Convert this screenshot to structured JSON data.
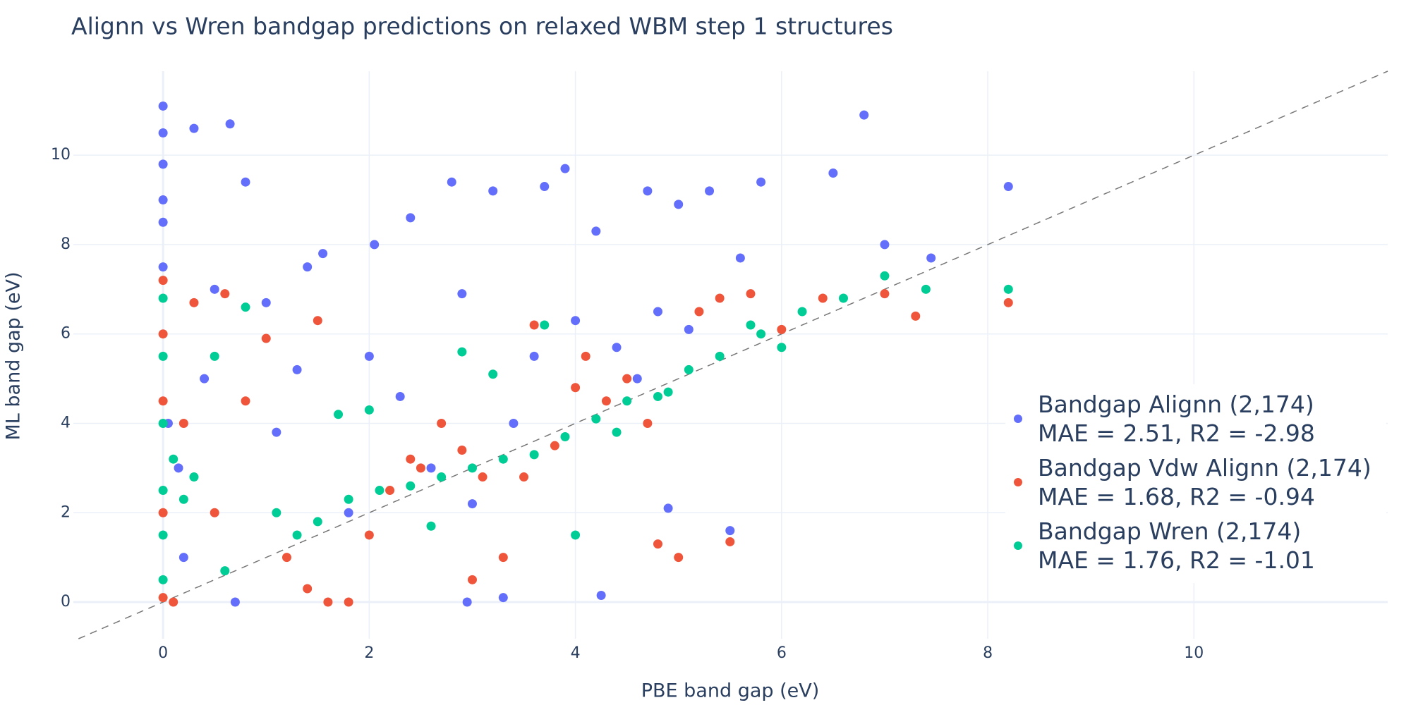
{
  "chart_data": {
    "type": "scatter",
    "title": "Alignn vs Wren bandgap predictions on relaxed WBM step 1 structures",
    "x_label": "PBE band gap (eV)",
    "y_label": "ML band gap (eV)",
    "xlim": [
      -0.87,
      11.88
    ],
    "ylim": [
      -0.82,
      11.88
    ],
    "xticks": [
      0,
      2,
      4,
      6,
      8,
      10
    ],
    "yticks": [
      0,
      2,
      4,
      6,
      8,
      10
    ],
    "grid": true,
    "legend_position": "right",
    "series": [
      {
        "name": "Bandgap Alignn (2,174)\nMAE = 2.51, R2 = -2.98",
        "color": "#636efa",
        "x": [
          0,
          0,
          0,
          0,
          0,
          0,
          0.05,
          0.3,
          0.65,
          0.8,
          0.5,
          0.15,
          1.0,
          1.4,
          1.55,
          2.05,
          2.4,
          2.8,
          2.9,
          3.2,
          3.7,
          3.9,
          4.2,
          4.7,
          5.0,
          5.3,
          5.8,
          6.5,
          6.8,
          7.0,
          7.45,
          8.2,
          4.25,
          4.9,
          5.5,
          3.3,
          2.95,
          0.4,
          1.1,
          1.8,
          2.3,
          2.6,
          3.0,
          3.4,
          3.6,
          4.0,
          4.4,
          4.6,
          4.8,
          5.1,
          5.6,
          0.2,
          0.7,
          1.3,
          2.0
        ],
        "values": [
          11.1,
          10.5,
          9.8,
          9.0,
          8.5,
          7.5,
          4.0,
          10.6,
          10.7,
          9.4,
          7.0,
          3.0,
          6.7,
          7.5,
          7.8,
          8.0,
          8.6,
          9.4,
          6.9,
          9.2,
          9.3,
          9.7,
          8.3,
          9.2,
          8.9,
          9.2,
          9.4,
          9.6,
          10.9,
          8.0,
          7.7,
          9.3,
          0.15,
          2.1,
          1.6,
          0.1,
          0.0,
          5.0,
          3.8,
          2.0,
          4.6,
          3.0,
          2.2,
          4.0,
          5.5,
          6.3,
          5.7,
          5.0,
          6.5,
          6.1,
          7.7,
          1.0,
          0.0,
          5.2,
          5.5
        ]
      },
      {
        "name": "Bandgap Vdw Alignn (2,174)\nMAE = 1.68, R2 = -0.94",
        "color": "#ef553b",
        "x": [
          0,
          0,
          0,
          0,
          0,
          0.1,
          0.3,
          0.6,
          1.0,
          1.5,
          1.8,
          2.2,
          2.5,
          3.0,
          3.3,
          3.5,
          3.8,
          4.0,
          4.3,
          4.5,
          4.8,
          5.0,
          5.2,
          5.4,
          5.7,
          6.0,
          6.4,
          7.0,
          7.3,
          8.2,
          0.5,
          1.2,
          1.6,
          2.0,
          2.7,
          3.1,
          3.6,
          4.1,
          4.7,
          5.5,
          0.8,
          1.4,
          2.4,
          0.2,
          2.9
        ],
        "values": [
          7.2,
          6.0,
          4.5,
          2.0,
          0.1,
          0.0,
          6.7,
          6.9,
          5.9,
          6.3,
          0.0,
          2.5,
          3.0,
          0.5,
          1.0,
          2.8,
          3.5,
          4.8,
          4.5,
          5.0,
          1.3,
          1.0,
          6.5,
          6.8,
          6.9,
          6.1,
          6.8,
          6.9,
          6.4,
          6.7,
          2.0,
          1.0,
          0.0,
          1.5,
          4.0,
          2.8,
          6.2,
          5.5,
          4.0,
          1.35,
          4.5,
          0.3,
          3.2,
          4.0,
          3.4
        ]
      },
      {
        "name": "Bandgap Wren (2,174)\nMAE = 1.76, R2 = -1.01",
        "color": "#00cc96",
        "x": [
          0,
          0,
          0,
          0,
          0,
          0,
          0.2,
          0.5,
          0.8,
          1.1,
          1.5,
          1.8,
          2.1,
          2.4,
          2.7,
          3.0,
          3.3,
          3.6,
          3.9,
          4.2,
          4.5,
          4.8,
          5.1,
          5.4,
          5.8,
          6.2,
          6.6,
          7.0,
          7.4,
          8.2,
          0.3,
          0.6,
          1.3,
          2.0,
          2.6,
          3.2,
          3.7,
          4.0,
          4.4,
          4.9,
          5.7,
          6.0,
          0.1,
          1.7,
          2.9
        ],
        "values": [
          6.8,
          5.5,
          4.0,
          2.5,
          1.5,
          0.5,
          2.3,
          5.5,
          6.6,
          2.0,
          1.8,
          2.3,
          2.5,
          2.6,
          2.8,
          3.0,
          3.2,
          3.3,
          3.7,
          4.1,
          4.5,
          4.6,
          5.2,
          5.5,
          6.0,
          6.5,
          6.8,
          7.3,
          7.0,
          7.0,
          2.8,
          0.7,
          1.5,
          4.3,
          1.7,
          5.1,
          6.2,
          1.5,
          3.8,
          4.7,
          6.2,
          5.7,
          3.2,
          4.2,
          5.6
        ]
      }
    ]
  }
}
